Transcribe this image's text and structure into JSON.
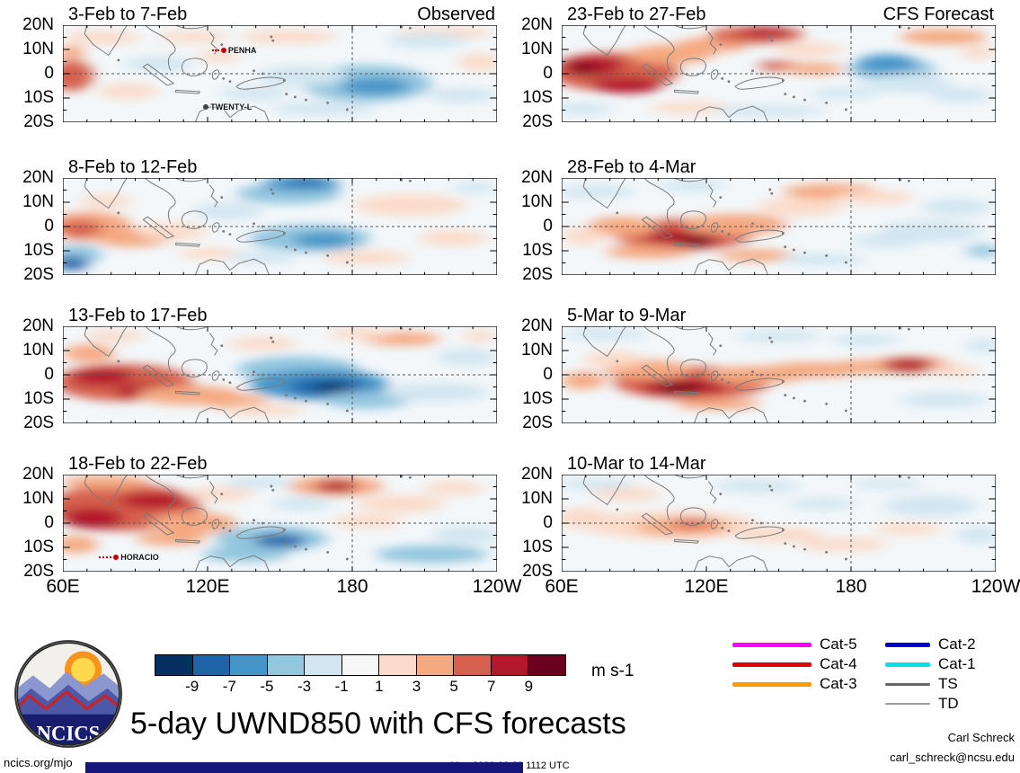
{
  "figure": {
    "title": "5-day UWND850 with CFS forecasts",
    "logo_text": "NCICS",
    "footer": {
      "site": "ncics.org/mjo",
      "timestamp": "Mon 2026-02-23 1112 UTC",
      "credit_name": "Carl Schreck",
      "credit_email": "carl_schreck@ncsu.edu"
    }
  },
  "chart_data": {
    "type": "heatmap",
    "subtype": "filled-contour longitude-latitude anomaly maps, 2 columns x 4 rows",
    "variable": "UWND850 5-day mean zonal wind anomaly",
    "columns": [
      {
        "header": "Observed"
      },
      {
        "header": "CFS Forecast"
      }
    ],
    "axes": {
      "lon_ticks": [
        "60E",
        "120E",
        "180",
        "120W"
      ],
      "lon_tick_pos": [
        0,
        33.33,
        66.67,
        100
      ],
      "lat_ticks": [
        "20N",
        "10N",
        "0",
        "10S",
        "20S"
      ],
      "lat_tick_pos": [
        0,
        25,
        50,
        75,
        100
      ],
      "lon_range_deg": [
        60,
        240
      ],
      "lat_range_deg": [
        20,
        -20
      ],
      "equator_dashed": true,
      "dateline_dashed": true
    },
    "colorbar": {
      "levels": [
        -9,
        -7,
        -5,
        -3,
        -1,
        1,
        3,
        5,
        7,
        9
      ],
      "colors": [
        "#053061",
        "#1f63a8",
        "#4695c8",
        "#93c6df",
        "#d3e6f0",
        "#f7f7f7",
        "#fbdbc9",
        "#f5a981",
        "#d6604d",
        "#b2182b",
        "#6a011f"
      ],
      "units": "m s-1"
    },
    "legend": {
      "groups": [
        {
          "line_width": 88,
          "items": [
            {
              "label": "Cat-5",
              "color": "#ff00ff",
              "weight": 5
            },
            {
              "label": "Cat-4",
              "color": "#e00000",
              "weight": 5
            },
            {
              "label": "Cat-3",
              "color": "#ff9900",
              "weight": 5
            }
          ]
        },
        {
          "line_width": 50,
          "items": [
            {
              "label": "Cat-2",
              "color": "#0000cc",
              "weight": 5
            },
            {
              "label": "Cat-1",
              "color": "#00e0e8",
              "weight": 5
            },
            {
              "label": "TS",
              "color": "#666666",
              "weight": 3
            },
            {
              "label": "TD",
              "color": "#9a9a9a",
              "weight": 1.5
            }
          ]
        }
      ]
    },
    "base_color": "#f3f7fa",
    "palette": {
      "b5": "#053061",
      "b4": "#1f63a8",
      "b3": "#4695c8",
      "b2": "#93c6df",
      "b1": "#d3e6f0",
      "r1": "#fbdbc9",
      "r2": "#f5a981",
      "r3": "#d6604d",
      "r4": "#b2182b",
      "r5": "#6a011f"
    },
    "panels": [
      {
        "title": "3-Feb to 7-Feb",
        "column": "Observed",
        "storms": [
          {
            "name": "PENHA",
            "x": 36,
            "y": 26,
            "color": "#cc0000",
            "track": 8
          },
          {
            "name": "TWENTY-L",
            "x": 34,
            "y": 84,
            "color": "#444444",
            "track": 0
          }
        ],
        "blobs": [
          [
            2,
            52,
            5,
            16,
            "r3"
          ],
          [
            2,
            28,
            3,
            7,
            "r2"
          ],
          [
            9,
            13,
            9,
            7,
            "r1"
          ],
          [
            15,
            68,
            7,
            8,
            "r1"
          ],
          [
            30,
            12,
            8,
            6,
            "r1"
          ],
          [
            52,
            12,
            11,
            7,
            "r1"
          ],
          [
            36,
            32,
            5,
            6,
            "r1"
          ],
          [
            88,
            8,
            11,
            6,
            "r1"
          ],
          [
            96,
            38,
            5,
            9,
            "r1"
          ],
          [
            70,
            60,
            15,
            19,
            "b2"
          ],
          [
            72,
            63,
            8,
            9,
            "b3"
          ],
          [
            55,
            52,
            10,
            11,
            "b1"
          ],
          [
            84,
            16,
            9,
            8,
            "b1"
          ],
          [
            92,
            72,
            8,
            8,
            "b1"
          ],
          [
            60,
            86,
            12,
            7,
            "b1"
          ],
          [
            44,
            70,
            8,
            7,
            "b1"
          ],
          [
            22,
            40,
            8,
            8,
            "b1"
          ]
        ]
      },
      {
        "title": "8-Feb to 12-Feb",
        "column": "Observed",
        "storms": [],
        "blobs": [
          [
            6,
            50,
            10,
            15,
            "r2"
          ],
          [
            4,
            52,
            5,
            9,
            "r3"
          ],
          [
            16,
            62,
            9,
            9,
            "r2"
          ],
          [
            25,
            55,
            8,
            9,
            "r1"
          ],
          [
            10,
            24,
            6,
            7,
            "r1"
          ],
          [
            34,
            78,
            7,
            6,
            "r1"
          ],
          [
            3,
            79,
            6,
            10,
            "b2"
          ],
          [
            2,
            88,
            4,
            7,
            "b4"
          ],
          [
            57,
            62,
            14,
            14,
            "b2"
          ],
          [
            60,
            64,
            7,
            8,
            "b3"
          ],
          [
            52,
            16,
            12,
            11,
            "b2"
          ],
          [
            55,
            6,
            9,
            8,
            "b3"
          ],
          [
            56,
            3,
            5,
            4,
            "b4"
          ],
          [
            80,
            28,
            13,
            11,
            "r1"
          ],
          [
            90,
            62,
            8,
            8,
            "r1"
          ],
          [
            70,
            82,
            10,
            7,
            "r1"
          ],
          [
            38,
            34,
            8,
            9,
            "b1"
          ],
          [
            46,
            82,
            8,
            6,
            "b1"
          ],
          [
            95,
            10,
            5,
            6,
            "b1"
          ]
        ]
      },
      {
        "title": "13-Feb to 17-Feb",
        "column": "Observed",
        "storms": [],
        "blobs": [
          [
            14,
            58,
            16,
            19,
            "r3"
          ],
          [
            9,
            52,
            7,
            9,
            "r4"
          ],
          [
            20,
            67,
            8,
            8,
            "r4"
          ],
          [
            29,
            71,
            12,
            10,
            "r2"
          ],
          [
            39,
            77,
            8,
            7,
            "r2"
          ],
          [
            6,
            28,
            6,
            9,
            "r2"
          ],
          [
            46,
            86,
            10,
            6,
            "r1"
          ],
          [
            12,
            10,
            7,
            6,
            "r1"
          ],
          [
            54,
            44,
            14,
            13,
            "b2"
          ],
          [
            59,
            60,
            16,
            16,
            "b3"
          ],
          [
            61,
            62,
            9,
            9,
            "b4"
          ],
          [
            62,
            63,
            4,
            5,
            "b5"
          ],
          [
            70,
            76,
            10,
            9,
            "b2"
          ],
          [
            86,
            68,
            12,
            10,
            "b1"
          ],
          [
            93,
            32,
            7,
            9,
            "b1"
          ],
          [
            78,
            13,
            9,
            7,
            "r2"
          ],
          [
            68,
            8,
            7,
            6,
            "r1"
          ],
          [
            46,
            18,
            8,
            7,
            "r1"
          ],
          [
            96,
            10,
            4,
            6,
            "r1"
          ]
        ]
      },
      {
        "title": "18-Feb to 22-Feb",
        "column": "Observed",
        "storms": [
          {
            "name": "HORACIO",
            "x": 10,
            "y": 85,
            "color": "#cc0000",
            "track": 14
          }
        ],
        "blobs": [
          [
            14,
            34,
            18,
            24,
            "r3"
          ],
          [
            7,
            45,
            7,
            11,
            "r4"
          ],
          [
            21,
            27,
            8,
            8,
            "r4"
          ],
          [
            10,
            8,
            10,
            7,
            "r2"
          ],
          [
            30,
            50,
            10,
            11,
            "r2"
          ],
          [
            3,
            72,
            5,
            9,
            "r2"
          ],
          [
            25,
            66,
            8,
            7,
            "r2"
          ],
          [
            36,
            20,
            8,
            7,
            "r1"
          ],
          [
            63,
            12,
            11,
            10,
            "r2"
          ],
          [
            63,
            12,
            5,
            6,
            "r4"
          ],
          [
            78,
            30,
            10,
            9,
            "r1"
          ],
          [
            90,
            14,
            7,
            7,
            "r1"
          ],
          [
            70,
            48,
            8,
            7,
            "r1"
          ],
          [
            48,
            66,
            13,
            13,
            "b2"
          ],
          [
            50,
            68,
            6,
            7,
            "b4"
          ],
          [
            42,
            82,
            10,
            8,
            "b2"
          ],
          [
            85,
            82,
            13,
            9,
            "b2"
          ],
          [
            93,
            62,
            8,
            9,
            "b1"
          ],
          [
            45,
            8,
            8,
            6,
            "b1"
          ],
          [
            55,
            30,
            7,
            7,
            "b1"
          ]
        ]
      },
      {
        "title": "23-Feb to 27-Feb",
        "column": "CFS Forecast",
        "storms": [],
        "blobs": [
          [
            12,
            48,
            15,
            20,
            "r3"
          ],
          [
            7,
            42,
            7,
            10,
            "r4"
          ],
          [
            5,
            45,
            3,
            5,
            "r5"
          ],
          [
            15,
            62,
            8,
            8,
            "r4"
          ],
          [
            25,
            30,
            10,
            10,
            "r2"
          ],
          [
            35,
            20,
            8,
            8,
            "r2"
          ],
          [
            45,
            10,
            11,
            9,
            "r3"
          ],
          [
            47,
            7,
            6,
            5,
            "r4"
          ],
          [
            57,
            25,
            8,
            7,
            "r1"
          ],
          [
            88,
            12,
            10,
            8,
            "r2"
          ],
          [
            96,
            28,
            4,
            7,
            "r1"
          ],
          [
            50,
            42,
            5,
            5,
            "r3"
          ],
          [
            58,
            45,
            7,
            6,
            "r2"
          ],
          [
            30,
            85,
            10,
            6,
            "r1"
          ],
          [
            76,
            45,
            10,
            12,
            "b2"
          ],
          [
            75,
            40,
            7,
            10,
            "b3"
          ],
          [
            80,
            60,
            10,
            10,
            "b1"
          ],
          [
            92,
            72,
            7,
            8,
            "b1"
          ],
          [
            5,
            86,
            7,
            6,
            "b1"
          ],
          [
            48,
            88,
            13,
            6,
            "b1"
          ],
          [
            65,
            70,
            8,
            6,
            "b1"
          ]
        ]
      },
      {
        "title": "28-Feb to 4-Mar",
        "column": "CFS Forecast",
        "storms": [],
        "blobs": [
          [
            28,
            58,
            16,
            16,
            "r3"
          ],
          [
            28,
            62,
            9,
            9,
            "r4"
          ],
          [
            31,
            66,
            4,
            5,
            "r5"
          ],
          [
            40,
            48,
            12,
            11,
            "r2"
          ],
          [
            14,
            50,
            8,
            10,
            "r2"
          ],
          [
            20,
            76,
            10,
            7,
            "r2"
          ],
          [
            55,
            30,
            10,
            9,
            "r1"
          ],
          [
            62,
            14,
            11,
            8,
            "r2"
          ],
          [
            72,
            20,
            9,
            7,
            "r1"
          ],
          [
            5,
            60,
            5,
            9,
            "r1"
          ],
          [
            45,
            80,
            9,
            6,
            "r2"
          ],
          [
            8,
            14,
            9,
            7,
            "b1"
          ],
          [
            30,
            8,
            8,
            6,
            "b1"
          ],
          [
            85,
            55,
            12,
            11,
            "b1"
          ],
          [
            91,
            30,
            8,
            9,
            "b1"
          ],
          [
            60,
            84,
            10,
            6,
            "b1"
          ],
          [
            75,
            65,
            8,
            7,
            "b1"
          ],
          [
            97,
            75,
            4,
            6,
            "b2"
          ]
        ]
      },
      {
        "title": "5-Mar to 9-Mar",
        "column": "CFS Forecast",
        "storms": [],
        "blobs": [
          [
            30,
            58,
            18,
            17,
            "r3"
          ],
          [
            28,
            62,
            10,
            9,
            "r4"
          ],
          [
            27,
            64,
            5,
            5,
            "r5"
          ],
          [
            20,
            45,
            10,
            10,
            "r2"
          ],
          [
            45,
            50,
            12,
            9,
            "r2"
          ],
          [
            58,
            45,
            12,
            8,
            "r2"
          ],
          [
            70,
            42,
            9,
            7,
            "r2"
          ],
          [
            80,
            40,
            10,
            9,
            "r2"
          ],
          [
            80,
            40,
            6,
            7,
            "r4"
          ],
          [
            90,
            46,
            6,
            6,
            "r1"
          ],
          [
            12,
            34,
            7,
            8,
            "r1"
          ],
          [
            5,
            56,
            5,
            9,
            "r2"
          ],
          [
            36,
            80,
            10,
            6,
            "r2"
          ],
          [
            10,
            8,
            10,
            6,
            "b1"
          ],
          [
            50,
            10,
            10,
            6,
            "b1"
          ],
          [
            88,
            76,
            10,
            8,
            "b1"
          ],
          [
            70,
            14,
            8,
            6,
            "b1"
          ],
          [
            97,
            20,
            4,
            7,
            "b1"
          ]
        ]
      },
      {
        "title": "10-Mar to 14-Mar",
        "column": "CFS Forecast",
        "storms": [],
        "blobs": [
          [
            25,
            52,
            20,
            15,
            "r1"
          ],
          [
            28,
            54,
            11,
            9,
            "r2"
          ],
          [
            30,
            50,
            5,
            5,
            "r3"
          ],
          [
            5,
            45,
            6,
            11,
            "r1"
          ],
          [
            50,
            62,
            10,
            8,
            "r1"
          ],
          [
            65,
            72,
            10,
            7,
            "r1"
          ],
          [
            80,
            56,
            8,
            6,
            "r1"
          ],
          [
            15,
            20,
            8,
            7,
            "r1"
          ],
          [
            8,
            10,
            9,
            6,
            "b1"
          ],
          [
            45,
            12,
            10,
            7,
            "b1"
          ],
          [
            85,
            32,
            11,
            11,
            "b1"
          ],
          [
            96,
            62,
            5,
            9,
            "b1"
          ],
          [
            60,
            30,
            8,
            6,
            "b1"
          ],
          [
            75,
            10,
            8,
            5,
            "b1"
          ]
        ]
      }
    ]
  }
}
